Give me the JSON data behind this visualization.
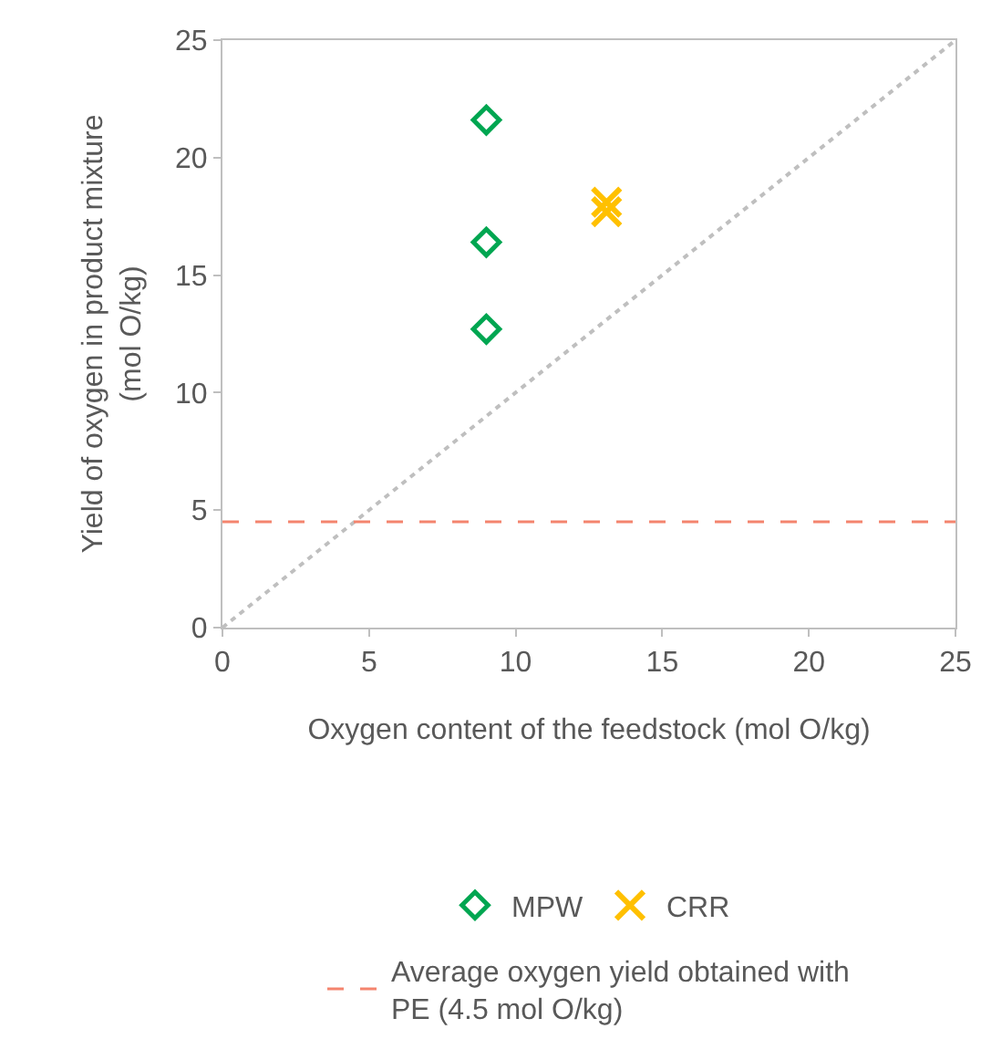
{
  "chart_data": {
    "type": "scatter",
    "xlabel": "Oxygen content of the feedstock (mol O/kg)",
    "ylabel": "Yield of oxygen in product mixture\n(mol O/kg)",
    "xlim": [
      0,
      25
    ],
    "xticks": [
      0,
      5,
      10,
      15,
      20,
      25
    ],
    "ylim": [
      0,
      25
    ],
    "yticks": [
      0,
      5,
      10,
      15,
      20,
      25
    ],
    "grid": false,
    "legend": "bottom",
    "series": [
      {
        "name": "MPW",
        "color": "#00a651",
        "marker": "diamond",
        "x": [
          9,
          9,
          9
        ],
        "values": [
          21.6,
          16.4,
          12.7
        ]
      },
      {
        "name": "CRR",
        "color": "#ffc000",
        "marker": "cross",
        "x": [
          13.1,
          13.1
        ],
        "values": [
          18.1,
          17.7
        ]
      },
      {
        "type": "line",
        "color": "#bfbfbf",
        "line_style": "dotted",
        "marker": "none",
        "x": [
          0,
          25
        ],
        "values": [
          0,
          25
        ]
      }
    ],
    "ref_lines": [
      {
        "axis": "y",
        "value": 4.5,
        "label": "Average oxygen yield obtained with\nPE (4.5 mol O/kg)",
        "color": "#f4846e",
        "line_style": "dashed"
      }
    ]
  }
}
